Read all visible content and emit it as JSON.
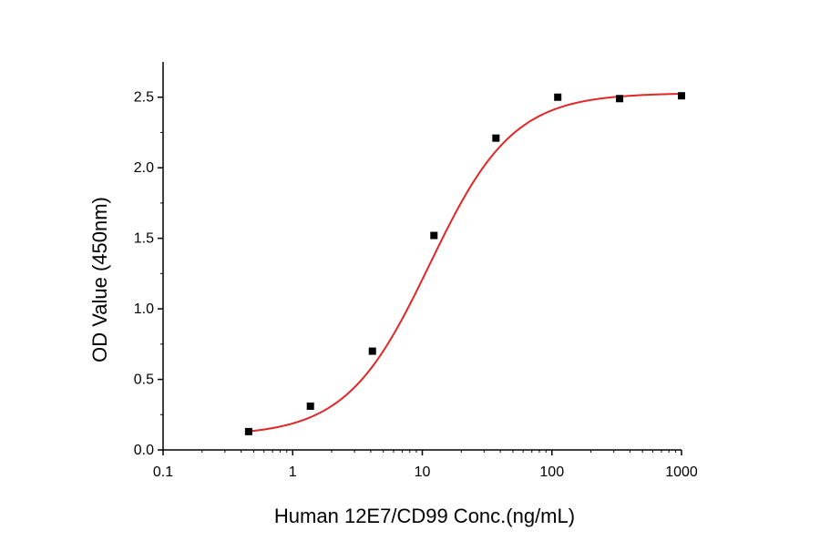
{
  "chart_data": {
    "type": "scatter",
    "title": "",
    "xlabel": "Human 12E7/CD99 Conc.(ng/mL)",
    "ylabel": "OD Value (450nm)",
    "x_scale": "log",
    "xlim": [
      0.1,
      1000
    ],
    "ylim": [
      0,
      2.75
    ],
    "x_ticks": [
      0.1,
      1,
      10,
      100,
      1000
    ],
    "x_tick_labels": [
      "0.1",
      "1",
      "10",
      "100",
      "1000"
    ],
    "y_ticks": [
      0.0,
      0.5,
      1.0,
      1.5,
      2.0,
      2.5
    ],
    "y_tick_labels": [
      "0.0",
      "0.5",
      "1.0",
      "1.5",
      "2.0",
      "2.5"
    ],
    "grid": false,
    "legend": "none",
    "series": [
      {
        "x": [
          0.457,
          1.37,
          4.12,
          12.3,
          37.0,
          111,
          333,
          1000
        ],
        "y": [
          0.13,
          0.31,
          0.7,
          1.52,
          2.21,
          2.5,
          2.49,
          2.51
        ],
        "marker": "square",
        "color": "#000000"
      }
    ],
    "fit_curve": {
      "type": "4PL",
      "bottom": 0.1,
      "top": 2.53,
      "ec50": 11.4,
      "hill": 1.35,
      "color": "#e32626"
    }
  }
}
